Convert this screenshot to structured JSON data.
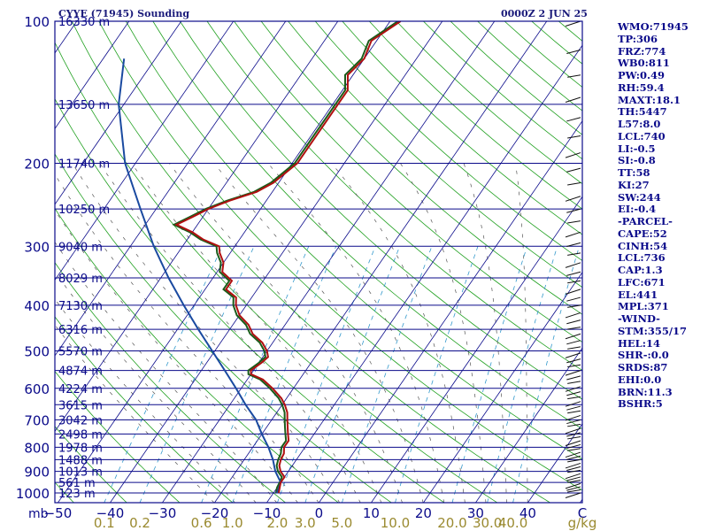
{
  "title_left": "CYYE (71945) Sounding",
  "title_right": "0000Z  2 JUN 25",
  "chart_data": {
    "type": "skew-t",
    "station": "CYYE (71945)",
    "time": "0000Z 2 JUN 25",
    "y_unit": "mb",
    "x_unit": "C",
    "mixing_ratio_unit": "g/kg",
    "pressure_levels": [
      100,
      200,
      300,
      400,
      500,
      600,
      700,
      800,
      900,
      1000
    ],
    "temperature_ticks": [
      -50,
      -40,
      -30,
      -20,
      -10,
      0,
      10,
      20,
      30,
      40
    ],
    "mixing_ratio_ticks": [
      "0.1",
      "0.2",
      "0.6",
      "1.0",
      "2.0",
      "3.0",
      "5.0",
      "10.0",
      "20.0",
      "30.0",
      "40.0"
    ],
    "height_labels": [
      "16330 m",
      "13650 m",
      "11740 m",
      "10250 m",
      "9040 m",
      "8029 m",
      "7130 m",
      "6316 m",
      "5570 m",
      "4874 m",
      "4224 m",
      "3615 m",
      "3042 m",
      "2498 m",
      "1978 m",
      "1488 m",
      "1013 m",
      "561 m",
      "123 m"
    ],
    "temperature_profile": [
      [
        1000,
        -9
      ],
      [
        975,
        -9.5
      ],
      [
        950,
        -10
      ],
      [
        925,
        -10
      ],
      [
        900,
        -11.5
      ],
      [
        875,
        -12.5
      ],
      [
        850,
        -13
      ],
      [
        825,
        -13.2
      ],
      [
        800,
        -14
      ],
      [
        775,
        -14
      ],
      [
        750,
        -15
      ],
      [
        725,
        -16
      ],
      [
        700,
        -17
      ],
      [
        675,
        -18
      ],
      [
        650,
        -19.5
      ],
      [
        630,
        -21
      ],
      [
        600,
        -24
      ],
      [
        575,
        -27
      ],
      [
        560,
        -30
      ],
      [
        550,
        -30.5
      ],
      [
        530,
        -29.5
      ],
      [
        515,
        -29
      ],
      [
        500,
        -30
      ],
      [
        480,
        -32
      ],
      [
        460,
        -35
      ],
      [
        440,
        -37
      ],
      [
        420,
        -40
      ],
      [
        400,
        -42
      ],
      [
        385,
        -43
      ],
      [
        370,
        -46
      ],
      [
        355,
        -46
      ],
      [
        340,
        -49
      ],
      [
        325,
        -50
      ],
      [
        310,
        -52
      ],
      [
        300,
        -53
      ],
      [
        290,
        -57
      ],
      [
        280,
        -60
      ],
      [
        270,
        -64
      ],
      [
        260,
        -62
      ],
      [
        250,
        -60
      ],
      [
        240,
        -57
      ],
      [
        230,
        -53
      ],
      [
        220,
        -51
      ],
      [
        200,
        -49
      ],
      [
        180,
        -49
      ],
      [
        160,
        -49
      ],
      [
        140,
        -49
      ],
      [
        130,
        -51
      ],
      [
        120,
        -50
      ],
      [
        110,
        -51
      ],
      [
        100,
        -48
      ]
    ],
    "dewpoint_profile": [
      [
        1000,
        -9.5
      ],
      [
        975,
        -10
      ],
      [
        950,
        -10.2
      ],
      [
        925,
        -10.5
      ],
      [
        900,
        -12
      ],
      [
        875,
        -13
      ],
      [
        850,
        -13.5
      ],
      [
        825,
        -13.8
      ],
      [
        800,
        -14.5
      ],
      [
        775,
        -14.5
      ],
      [
        750,
        -15.5
      ],
      [
        725,
        -16.5
      ],
      [
        700,
        -17.5
      ],
      [
        675,
        -18.5
      ],
      [
        650,
        -20
      ],
      [
        630,
        -21.5
      ],
      [
        600,
        -24.5
      ],
      [
        575,
        -27.5
      ],
      [
        560,
        -30.5
      ],
      [
        550,
        -31
      ],
      [
        530,
        -30
      ],
      [
        515,
        -29.5
      ],
      [
        500,
        -30.5
      ],
      [
        480,
        -32.5
      ],
      [
        460,
        -35.5
      ],
      [
        440,
        -37.5
      ],
      [
        420,
        -40.5
      ],
      [
        400,
        -42.5
      ],
      [
        385,
        -43.5
      ],
      [
        370,
        -46.5
      ],
      [
        355,
        -46.5
      ],
      [
        340,
        -49.5
      ],
      [
        325,
        -50.5
      ],
      [
        310,
        -52.5
      ],
      [
        300,
        -53.5
      ],
      [
        290,
        -57.5
      ],
      [
        280,
        -60.5
      ],
      [
        270,
        -64.5
      ],
      [
        260,
        -62.5
      ],
      [
        250,
        -60.5
      ],
      [
        240,
        -57.5
      ],
      [
        230,
        -53.5
      ],
      [
        220,
        -51.5
      ],
      [
        200,
        -49.5
      ],
      [
        180,
        -49.5
      ],
      [
        160,
        -49.5
      ],
      [
        140,
        -49.5
      ],
      [
        130,
        -51.5
      ],
      [
        120,
        -50.5
      ],
      [
        110,
        -51.5
      ],
      [
        100,
        -48.5
      ]
    ],
    "parcel_path": [
      [
        1000,
        -9.3
      ],
      [
        950,
        -10
      ],
      [
        900,
        -12.5
      ],
      [
        850,
        -14.5
      ],
      [
        800,
        -17
      ],
      [
        750,
        -20
      ],
      [
        700,
        -23
      ],
      [
        650,
        -27
      ],
      [
        600,
        -31
      ],
      [
        550,
        -35.5
      ],
      [
        500,
        -40.5
      ],
      [
        450,
        -46
      ],
      [
        400,
        -52
      ],
      [
        350,
        -58.5
      ],
      [
        300,
        -65.5
      ],
      [
        250,
        -73
      ],
      [
        200,
        -82
      ],
      [
        150,
        -91
      ],
      [
        120,
        -96
      ]
    ],
    "wind_axis_label": "C",
    "indices": [
      "WMO:71945",
      "TP:306",
      "FRZ:774",
      "WB0:811",
      "PW:0.49",
      "RH:59.4",
      "MAXT:18.1",
      "TH:5447",
      "L57:8.0",
      "LCL:740",
      "LI:-0.5",
      "SI:-0.8",
      "TT:58",
      "KI:27",
      "SW:244",
      "EI:-0.4",
      "-PARCEL-",
      "CAPE:52",
      "CINH:54",
      "LCL:736",
      "CAP:1.3",
      "LFC:671",
      "EL:441",
      "MPL:371",
      "-WIND-",
      "STM:355/17",
      "HEL:14",
      "SHR-:0.0",
      "SRDS:87",
      "EHI:0.0",
      "BRN:11.3",
      "BSHR:5"
    ]
  }
}
